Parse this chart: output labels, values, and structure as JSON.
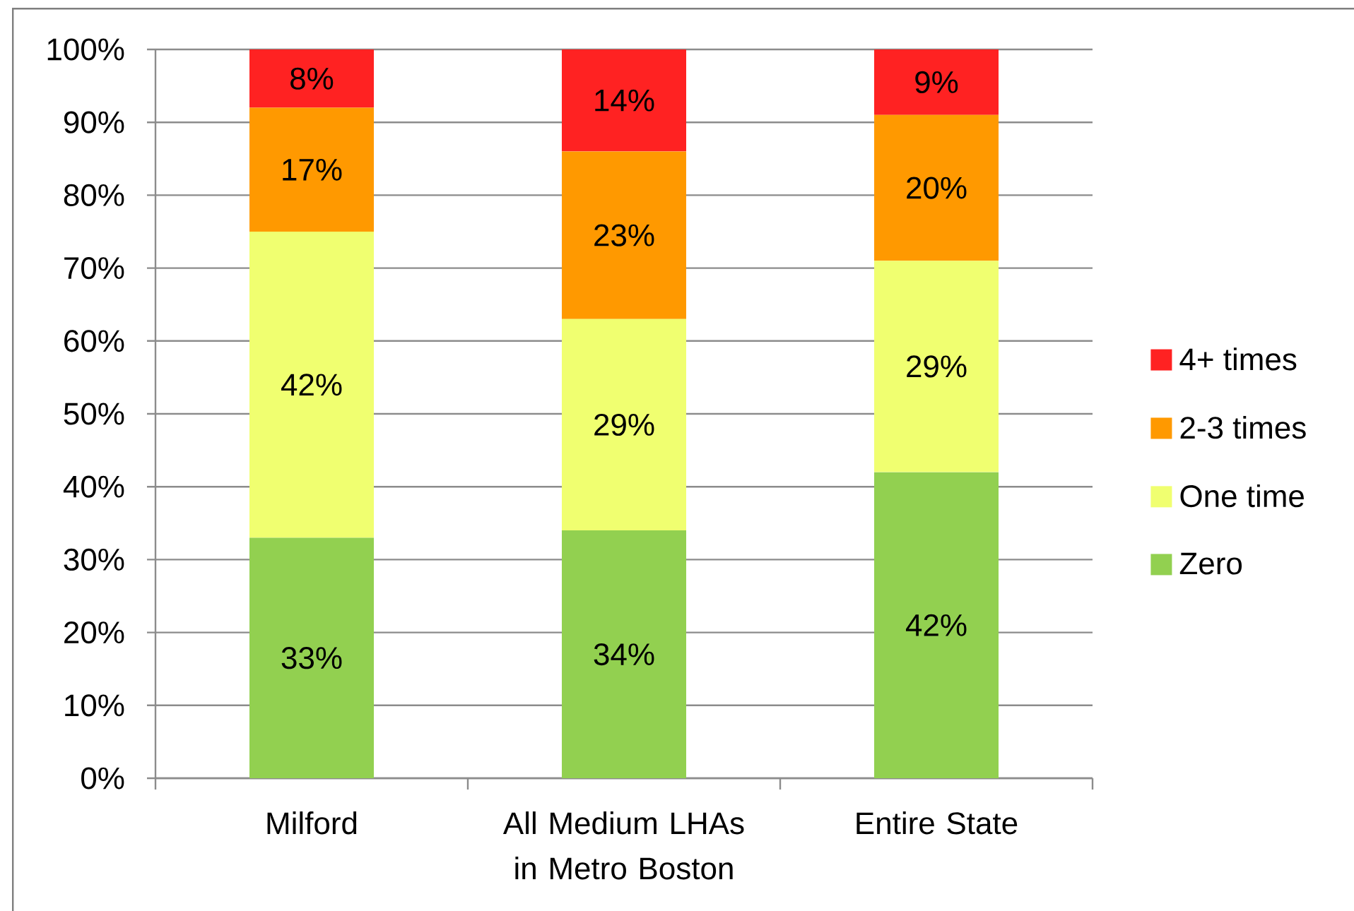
{
  "chart_data": {
    "type": "bar",
    "stacked": true,
    "categories": [
      "Milford",
      "All Medium LHAs in Metro Boston",
      "Entire State"
    ],
    "series": [
      {
        "name": "Zero",
        "color": "#92d050",
        "values": [
          33,
          34,
          42
        ],
        "value_labels": [
          "33%",
          "34%",
          "42%"
        ]
      },
      {
        "name": "One time",
        "color": "#f0ff70",
        "values": [
          42,
          29,
          29
        ],
        "value_labels": [
          "42%",
          "29%",
          "29%"
        ]
      },
      {
        "name": "2-3 times",
        "color": "#ff9900",
        "values": [
          17,
          23,
          20
        ],
        "value_labels": [
          "17%",
          "23%",
          "20%"
        ]
      },
      {
        "name": "4+ times",
        "color": "#ff2222",
        "values": [
          8,
          14,
          9
        ],
        "value_labels": [
          "8%",
          "14%",
          "9%"
        ]
      }
    ],
    "ylim": [
      0,
      100
    ],
    "yticks": [
      {
        "value": 0,
        "label": "0%"
      },
      {
        "value": 10,
        "label": "10%"
      },
      {
        "value": 20,
        "label": "20%"
      },
      {
        "value": 30,
        "label": "30%"
      },
      {
        "value": 40,
        "label": "40%"
      },
      {
        "value": 50,
        "label": "50%"
      },
      {
        "value": 60,
        "label": "60%"
      },
      {
        "value": 70,
        "label": "70%"
      },
      {
        "value": 80,
        "label": "80%"
      },
      {
        "value": 90,
        "label": "90%"
      },
      {
        "value": 100,
        "label": "100%"
      }
    ],
    "grid": "y",
    "legend": "right"
  }
}
